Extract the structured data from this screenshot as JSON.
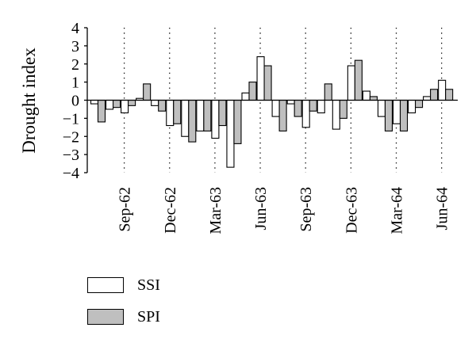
{
  "chart_data": {
    "type": "bar",
    "ylabel": "Drought index",
    "ylim": [
      -4,
      4
    ],
    "yticks": [
      "4",
      "3",
      "2",
      "1",
      "0",
      "−1",
      "−2",
      "−3",
      "−4"
    ],
    "xticks": [
      "Sep-62",
      "Dec-62",
      "Mar-63",
      "Jun-63",
      "Sep-63",
      "Dec-63",
      "Mar-64",
      "Jun-64"
    ],
    "xtick_months": [
      2,
      5,
      8,
      11,
      14,
      17,
      20,
      23
    ],
    "grid": "vertical dotted",
    "legend_position": "bottom-left",
    "colors": {
      "SSI": "#ffffff",
      "SPI": "#bfbfbf",
      "outline": "#000000"
    },
    "series": [
      {
        "name": "SSI",
        "values": [
          -0.2,
          -0.5,
          -0.7,
          0.1,
          -0.3,
          -1.4,
          -2.0,
          -1.7,
          -2.1,
          -3.7,
          0.4,
          2.4,
          -0.9,
          -0.2,
          -1.5,
          -0.7,
          -1.6,
          1.9,
          0.5,
          -0.9,
          -1.3,
          -0.7,
          0.2,
          1.1
        ]
      },
      {
        "name": "SPI",
        "values": [
          -1.2,
          -0.4,
          -0.3,
          0.9,
          -0.6,
          -1.3,
          -2.3,
          -1.7,
          -1.4,
          -2.4,
          1.0,
          1.9,
          -1.7,
          -0.9,
          -0.6,
          0.9,
          -1.0,
          2.2,
          0.2,
          -1.7,
          -1.7,
          -0.4,
          0.6,
          0.6
        ]
      }
    ]
  }
}
